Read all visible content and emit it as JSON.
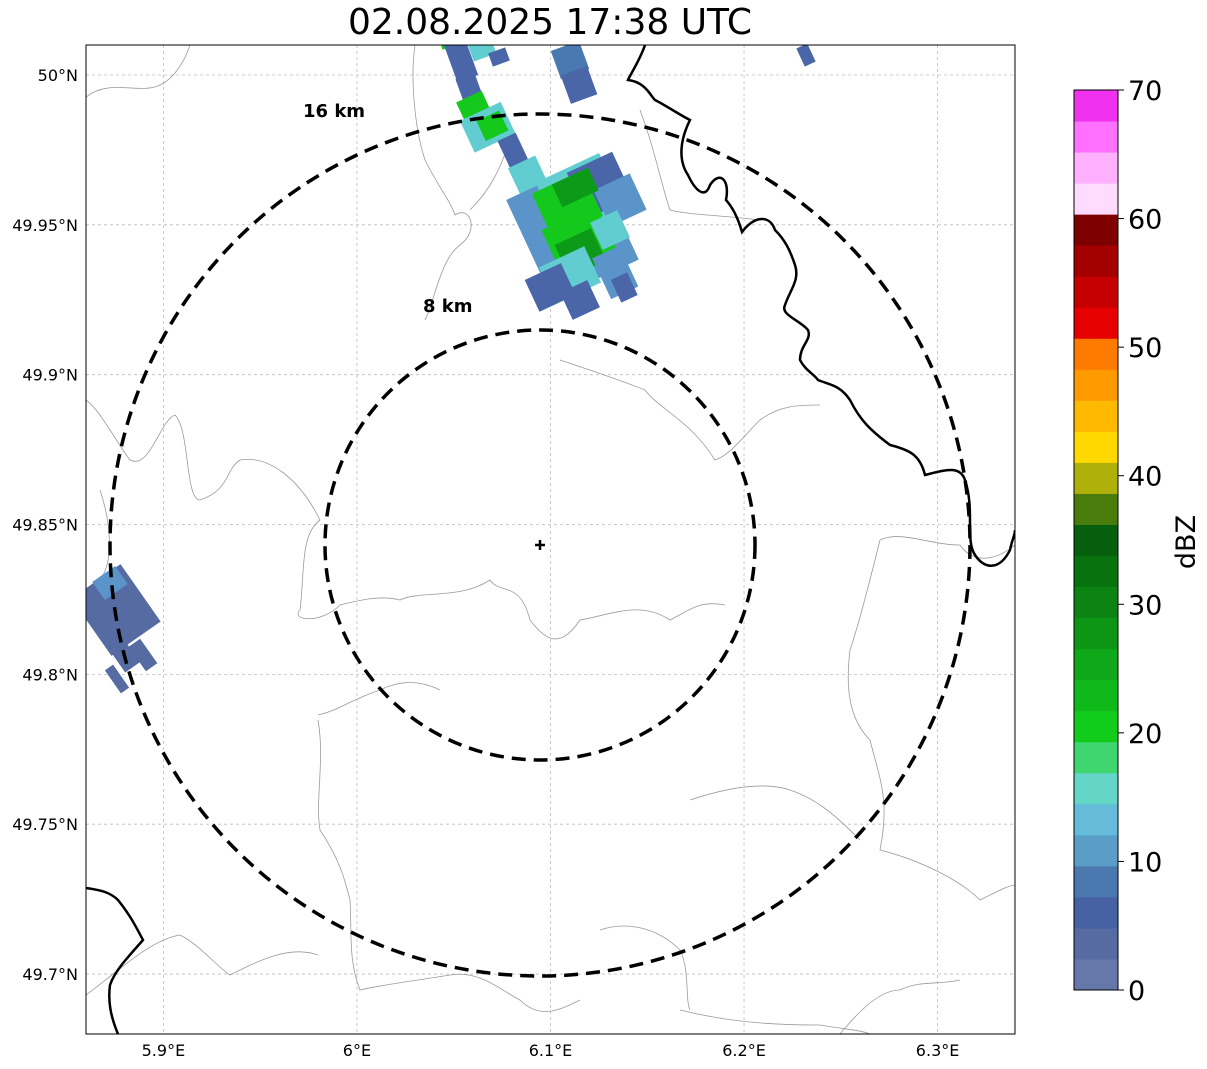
{
  "title": "02.08.2025 17:38 UTC",
  "map": {
    "lon_range": [
      5.86,
      6.34
    ],
    "lat_range": [
      49.68,
      50.01
    ],
    "lat_ticks": [
      {
        "value": 50.0,
        "label": "50°N"
      },
      {
        "value": 49.95,
        "label": "49.95°N"
      },
      {
        "value": 49.9,
        "label": "49.9°N"
      },
      {
        "value": 49.85,
        "label": "49.85°N"
      },
      {
        "value": 49.8,
        "label": "49.8°N"
      },
      {
        "value": 49.75,
        "label": "49.75°N"
      },
      {
        "value": 49.7,
        "label": "49.7°N"
      }
    ],
    "lon_ticks": [
      {
        "value": 5.9,
        "label": "5.9°E"
      },
      {
        "value": 6.0,
        "label": "6°E"
      },
      {
        "value": 6.1,
        "label": "6.1°E"
      },
      {
        "value": 6.2,
        "label": "6.2°E"
      },
      {
        "value": 6.3,
        "label": "6.3°E"
      }
    ],
    "center": {
      "lon": 6.096,
      "lat": 49.843
    },
    "rings": [
      {
        "label": "8 km",
        "radius_km": 8
      },
      {
        "label": "16 km",
        "radius_km": 16
      }
    ]
  },
  "colorbar": {
    "label": "dBZ",
    "ticks": [
      "0",
      "10",
      "20",
      "30",
      "40",
      "50",
      "60",
      "70"
    ],
    "colors": [
      "#6578a9",
      "#566ba2",
      "#4662a4",
      "#4c78b0",
      "#5a9ec8",
      "#65bcda",
      "#64d6c8",
      "#3fd66f",
      "#12cc1b",
      "#10b91a",
      "#0fa818",
      "#0d9616",
      "#0b8414",
      "#08720f",
      "#065f0c",
      "#4a7c0c",
      "#b0b00b",
      "#ffd800",
      "#ffb900",
      "#ff9a00",
      "#ff7b00",
      "#e60000",
      "#c60000",
      "#a50000",
      "#7f0000",
      "#ffdcff",
      "#ffb0ff",
      "#ff70ff",
      "#f032f0"
    ]
  },
  "echo_colors": {
    "blue": "#4a65a8",
    "lightblue": "#5a94c8",
    "cyan": "#62cdd0",
    "green": "#14c81c",
    "darkgreen": "#0c9a18"
  }
}
